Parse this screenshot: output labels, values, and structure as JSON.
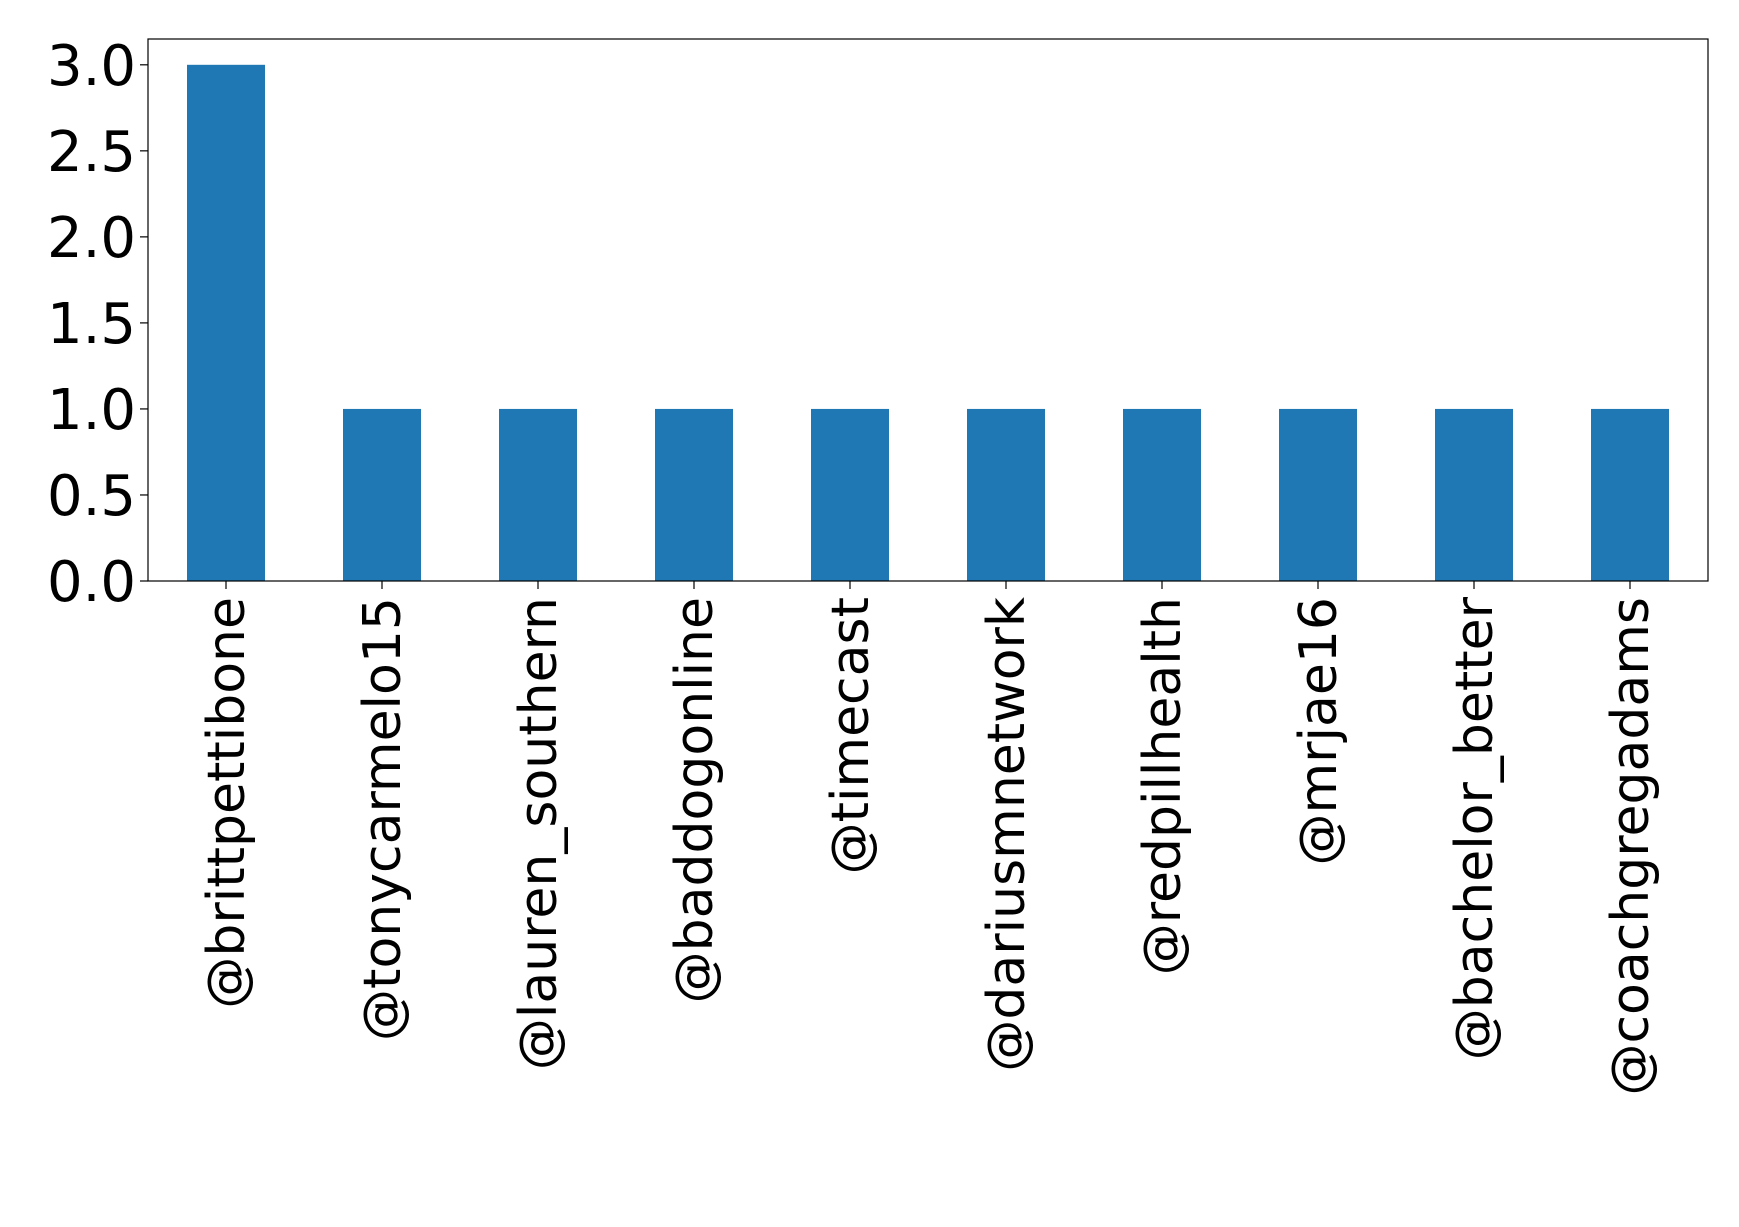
{
  "chart_data": {
    "type": "bar",
    "title": "",
    "xlabel": "",
    "ylabel": "",
    "categories": [
      "@brittpettibone",
      "@tonycarmelo15",
      "@lauren_southern",
      "@baddogonline",
      "@timecast",
      "@dariusmnetwork",
      "@redpillhealth",
      "@mrjae16",
      "@bachelor_better",
      "@coachgregadams"
    ],
    "values": [
      3,
      1,
      1,
      1,
      1,
      1,
      1,
      1,
      1,
      1
    ],
    "ylim": [
      0,
      3.15
    ],
    "yticks": [
      "0.0",
      "0.5",
      "1.0",
      "1.5",
      "2.0",
      "2.5",
      "3.0"
    ],
    "grid": false,
    "legend": "none",
    "bar_color": "#1f77b4"
  }
}
